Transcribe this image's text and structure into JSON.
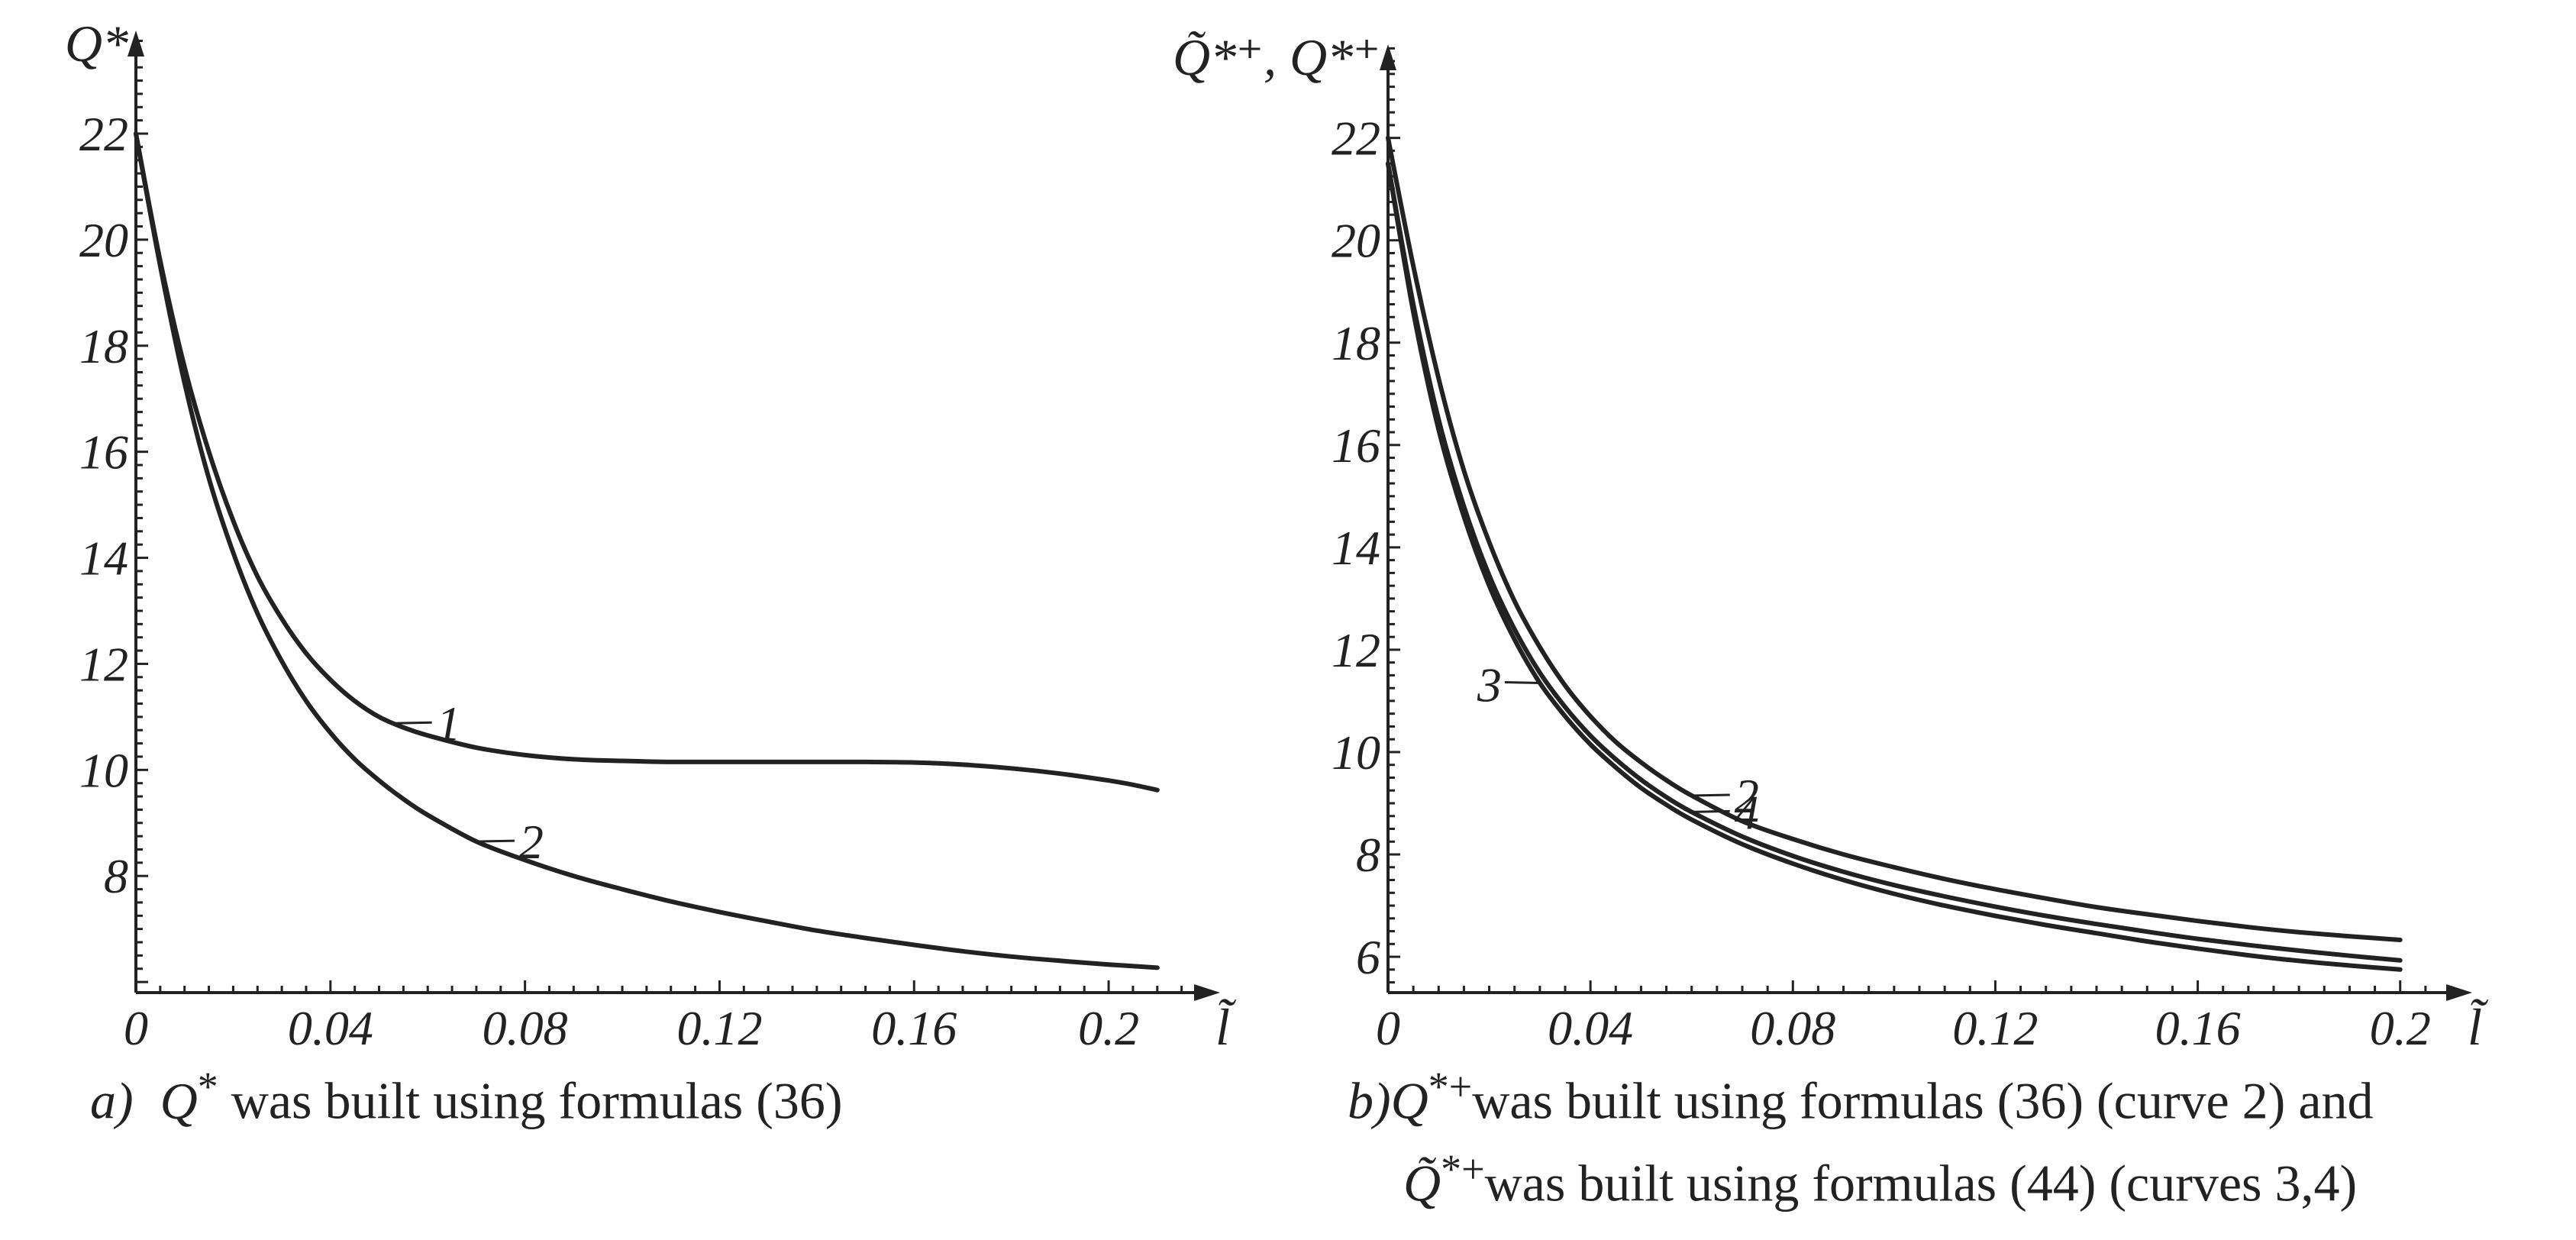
{
  "chart_data": [
    {
      "type": "line",
      "panel": "a",
      "title": "",
      "xlabel": "l̃",
      "ylabel": "Q*",
      "xlim": [
        0,
        0.216
      ],
      "ylim": [
        5.8,
        23.8
      ],
      "x_ticks": [
        0,
        0.04,
        0.08,
        0.12,
        0.16,
        0.2
      ],
      "x_tick_labels": [
        "0",
        "0.04",
        "0.08",
        "0.12",
        "0.16",
        "0.2"
      ],
      "y_ticks": [
        8,
        10,
        12,
        14,
        16,
        18,
        20,
        22
      ],
      "y_tick_labels": [
        "8",
        "10",
        "12",
        "14",
        "16",
        "18",
        "20",
        "22"
      ],
      "series": [
        {
          "name": "1",
          "x": [
            0,
            0.005,
            0.01,
            0.015,
            0.02,
            0.025,
            0.03,
            0.035,
            0.04,
            0.045,
            0.05,
            0.055,
            0.06,
            0.07,
            0.08,
            0.09,
            0.1,
            0.11,
            0.12,
            0.13,
            0.14,
            0.15,
            0.16,
            0.17,
            0.18,
            0.19,
            0.2,
            0.205,
            0.21
          ],
          "y": [
            22.0,
            19.6,
            17.6,
            16.0,
            14.7,
            13.65,
            12.85,
            12.2,
            11.7,
            11.3,
            11.0,
            10.8,
            10.65,
            10.42,
            10.28,
            10.2,
            10.17,
            10.15,
            10.15,
            10.15,
            10.15,
            10.15,
            10.14,
            10.1,
            10.03,
            9.93,
            9.8,
            9.72,
            9.62
          ]
        },
        {
          "name": "2",
          "x": [
            0,
            0.005,
            0.01,
            0.015,
            0.02,
            0.025,
            0.03,
            0.035,
            0.04,
            0.045,
            0.05,
            0.055,
            0.06,
            0.07,
            0.08,
            0.09,
            0.1,
            0.11,
            0.12,
            0.13,
            0.14,
            0.15,
            0.16,
            0.17,
            0.18,
            0.19,
            0.2,
            0.21
          ],
          "y": [
            22.0,
            19.5,
            17.3,
            15.5,
            14.1,
            12.95,
            12.05,
            11.3,
            10.7,
            10.2,
            9.8,
            9.45,
            9.15,
            8.65,
            8.3,
            8.0,
            7.75,
            7.52,
            7.32,
            7.14,
            6.97,
            6.83,
            6.7,
            6.58,
            6.48,
            6.4,
            6.33,
            6.27
          ]
        }
      ],
      "annotations": [
        {
          "text": "1",
          "series": "1",
          "at_x": 0.053
        },
        {
          "text": "2",
          "series": "2",
          "at_x": 0.07
        }
      ]
    },
    {
      "type": "line",
      "panel": "b",
      "title": "",
      "xlabel": "l̃",
      "ylabel": "Q̃*⁺, Q*⁺",
      "xlim": [
        0,
        0.21
      ],
      "ylim": [
        5.3,
        23.8
      ],
      "x_ticks": [
        0,
        0.04,
        0.08,
        0.12,
        0.16,
        0.2
      ],
      "x_tick_labels": [
        "0",
        "0.04",
        "0.08",
        "0.12",
        "0.16",
        "0.2"
      ],
      "y_ticks": [
        6,
        8,
        10,
        12,
        14,
        16,
        18,
        20,
        22
      ],
      "y_tick_labels": [
        "6",
        "8",
        "10",
        "12",
        "14",
        "16",
        "18",
        "20",
        "22"
      ],
      "series": [
        {
          "name": "2",
          "x": [
            0,
            0.005,
            0.01,
            0.015,
            0.02,
            0.025,
            0.03,
            0.035,
            0.04,
            0.045,
            0.05,
            0.055,
            0.06,
            0.07,
            0.08,
            0.09,
            0.1,
            0.11,
            0.12,
            0.13,
            0.14,
            0.15,
            0.16,
            0.17,
            0.18,
            0.19,
            0.2
          ],
          "y": [
            22.0,
            19.5,
            17.3,
            15.5,
            14.1,
            12.95,
            12.05,
            11.3,
            10.7,
            10.2,
            9.8,
            9.45,
            9.15,
            8.65,
            8.3,
            8.0,
            7.75,
            7.52,
            7.32,
            7.14,
            6.97,
            6.83,
            6.7,
            6.58,
            6.48,
            6.4,
            6.33
          ]
        },
        {
          "name": "3",
          "x": [
            0,
            0.005,
            0.01,
            0.015,
            0.02,
            0.025,
            0.03,
            0.035,
            0.04,
            0.045,
            0.05,
            0.055,
            0.06,
            0.07,
            0.08,
            0.09,
            0.1,
            0.11,
            0.12,
            0.13,
            0.14,
            0.15,
            0.16,
            0.17,
            0.18,
            0.19,
            0.2
          ],
          "y": [
            21.5,
            18.6,
            16.3,
            14.6,
            13.25,
            12.2,
            11.35,
            10.7,
            10.15,
            9.7,
            9.3,
            8.97,
            8.68,
            8.2,
            7.82,
            7.5,
            7.23,
            7.0,
            6.8,
            6.62,
            6.46,
            6.3,
            6.16,
            6.03,
            5.92,
            5.83,
            5.75
          ]
        },
        {
          "name": "4",
          "x": [
            0,
            0.005,
            0.01,
            0.015,
            0.02,
            0.025,
            0.03,
            0.035,
            0.04,
            0.045,
            0.05,
            0.055,
            0.06,
            0.07,
            0.08,
            0.09,
            0.1,
            0.11,
            0.12,
            0.13,
            0.14,
            0.15,
            0.16,
            0.17,
            0.18,
            0.19,
            0.2
          ],
          "y": [
            21.5,
            18.75,
            16.5,
            14.8,
            13.45,
            12.4,
            11.55,
            10.88,
            10.32,
            9.86,
            9.46,
            9.12,
            8.83,
            8.35,
            7.97,
            7.66,
            7.4,
            7.18,
            6.98,
            6.8,
            6.64,
            6.49,
            6.35,
            6.23,
            6.12,
            6.02,
            5.93
          ]
        }
      ],
      "annotations": [
        {
          "text": "3",
          "series": "3",
          "at_x": 0.03
        },
        {
          "text": "2",
          "series": "2",
          "at_x": 0.06
        },
        {
          "text": "4",
          "series": "4",
          "at_x": 0.06
        }
      ]
    }
  ],
  "captions": {
    "a": {
      "prefix": "a)",
      "symbol": "Q",
      "sup": "*",
      "text": "was built using formulas (36)"
    },
    "b": {
      "prefix": "b)",
      "line1_symbol": "Q",
      "line1_sup": "*+",
      "line1_text": "was built using formulas (36) (curve 2) and",
      "line2_symbol": "Q̃",
      "line2_sup": "*+",
      "line2_text": "was built using formulas (44) (curves 3,4)"
    }
  }
}
